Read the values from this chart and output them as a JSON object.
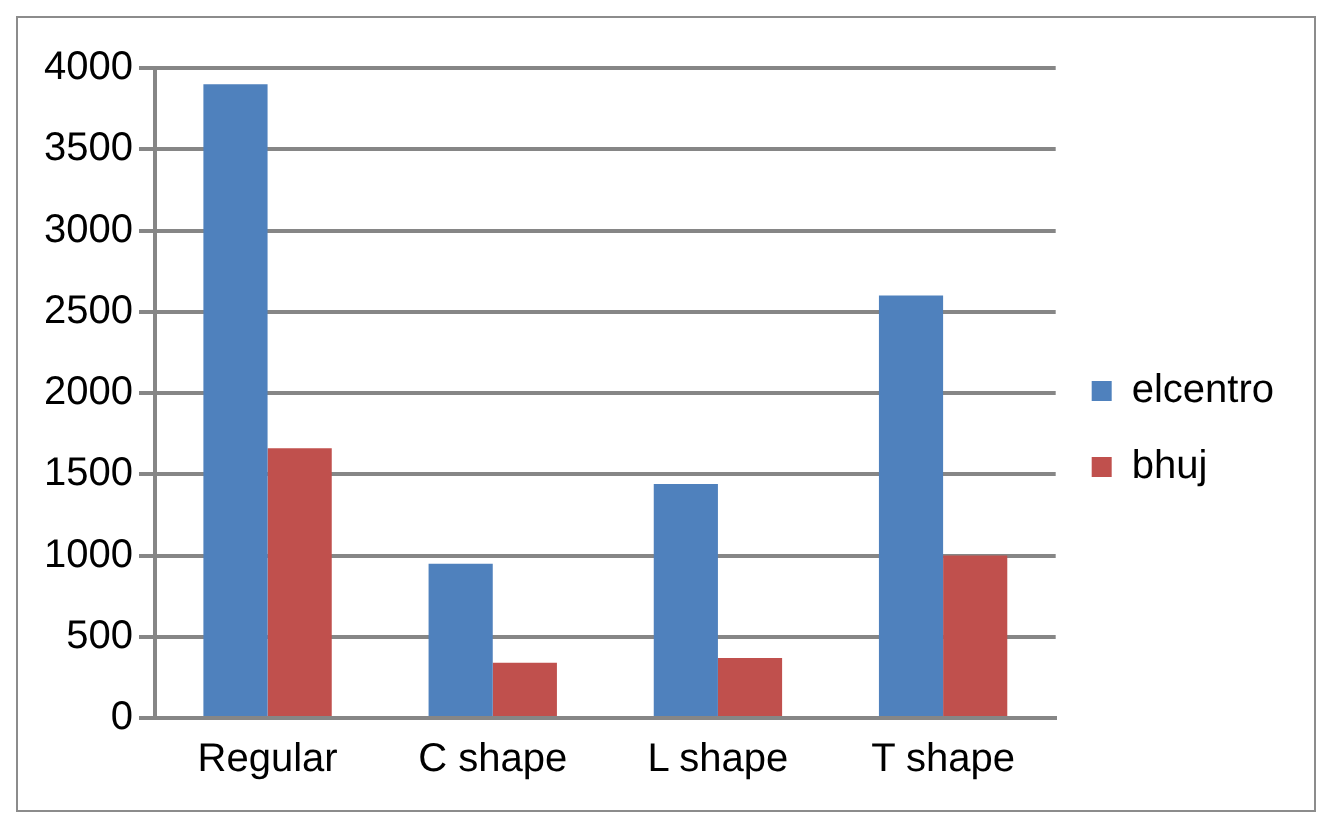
{
  "chart_data": {
    "type": "bar",
    "categories": [
      "Regular",
      "C shape",
      "L shape",
      "T shape"
    ],
    "series": [
      {
        "name": "elcentro",
        "color": "#4f81bd",
        "values": [
          3900,
          950,
          1440,
          2600
        ]
      },
      {
        "name": "bhuj",
        "color": "#c0504d",
        "values": [
          1660,
          340,
          370,
          1000
        ]
      }
    ],
    "ylim": [
      0,
      4000
    ],
    "yticks": [
      0,
      500,
      1000,
      1500,
      2000,
      2500,
      3000,
      3500,
      4000
    ],
    "grid": "y",
    "legend": "right"
  }
}
